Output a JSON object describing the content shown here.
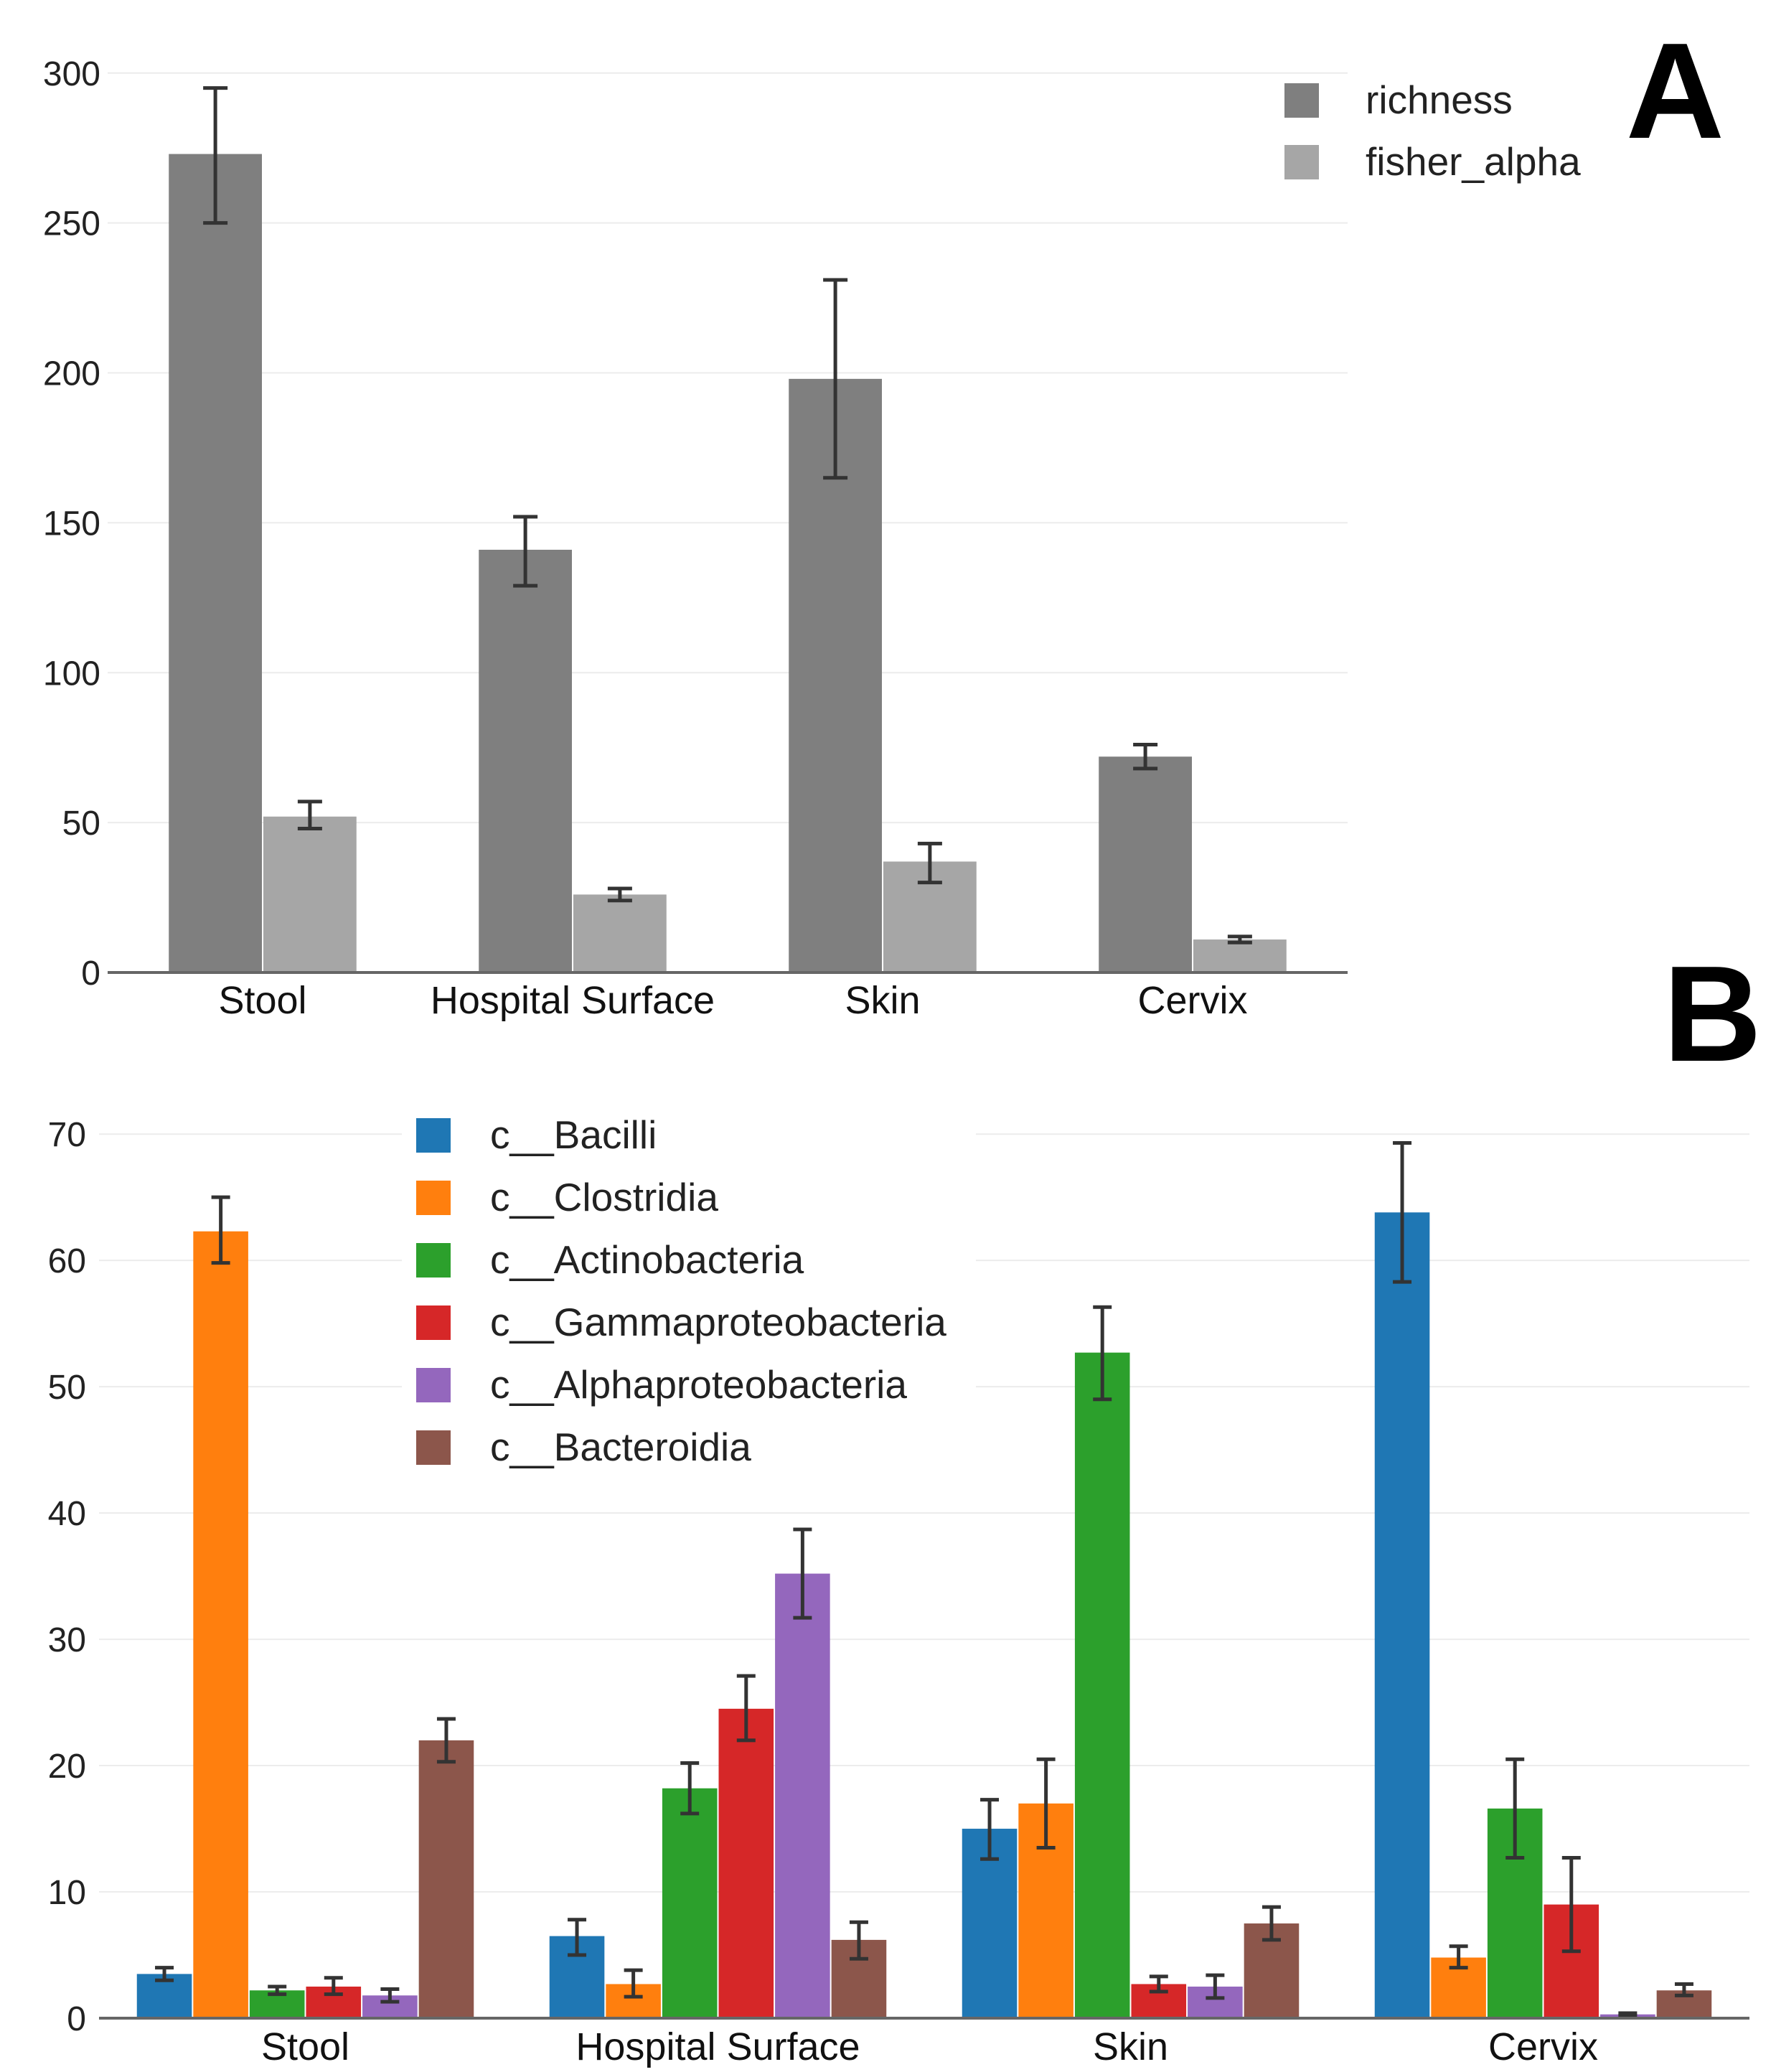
{
  "panels": {
    "a_label": "A",
    "b_label": "B"
  },
  "chart_data": [
    {
      "type": "bar",
      "panel": "A",
      "categories": [
        "Stool",
        "Hospital Surface",
        "Skin",
        "Cervix"
      ],
      "yticks": [
        "0",
        "50",
        "100",
        "150",
        "200",
        "250",
        "300"
      ],
      "ylim": [
        0,
        310
      ],
      "legend_position": "top-right",
      "series": [
        {
          "name": "richness",
          "color": "#7f7f7f",
          "values": [
            273,
            141,
            198,
            72
          ],
          "err_low": [
            250,
            129,
            165,
            68
          ],
          "err_high": [
            295,
            152,
            231,
            76
          ]
        },
        {
          "name": "fisher_alpha",
          "color": "#a6a6a6",
          "values": [
            52,
            26,
            37,
            11
          ],
          "err_low": [
            48,
            24,
            30,
            10
          ],
          "err_high": [
            57,
            28,
            43,
            12
          ]
        }
      ]
    },
    {
      "type": "bar",
      "panel": "B",
      "categories": [
        "Stool",
        "Hospital Surface",
        "Skin",
        "Cervix"
      ],
      "yticks": [
        "0",
        "10",
        "20",
        "30",
        "40",
        "50",
        "60",
        "70"
      ],
      "ylim": [
        0,
        72
      ],
      "legend_position": "top-left",
      "series": [
        {
          "name": "c__Bacilli",
          "color": "#1f77b4",
          "values": [
            3.5,
            6.5,
            15.0,
            63.8
          ],
          "err_low": [
            3.0,
            5.0,
            12.6,
            58.3
          ],
          "err_high": [
            4.0,
            7.8,
            17.3,
            69.3
          ]
        },
        {
          "name": "c__Clostridia",
          "color": "#ff7f0e",
          "values": [
            62.3,
            2.7,
            17.0,
            4.8
          ],
          "err_low": [
            59.8,
            1.7,
            13.5,
            4.0
          ],
          "err_high": [
            65.0,
            3.8,
            20.5,
            5.7
          ]
        },
        {
          "name": "c__Actinobacteria",
          "color": "#2ca02c",
          "values": [
            2.2,
            18.2,
            52.7,
            16.6
          ],
          "err_low": [
            1.9,
            16.2,
            49.0,
            12.7
          ],
          "err_high": [
            2.5,
            20.2,
            56.3,
            20.5
          ]
        },
        {
          "name": "c__Gammaproteobacteria",
          "color": "#d62728",
          "values": [
            2.5,
            24.5,
            2.7,
            9.0
          ],
          "err_low": [
            1.9,
            22.0,
            2.1,
            5.3
          ],
          "err_high": [
            3.2,
            27.1,
            3.3,
            12.7
          ]
        },
        {
          "name": "c__Alphaproteobacteria",
          "color": "#9467bd",
          "values": [
            1.8,
            35.2,
            2.5,
            0.3
          ],
          "err_low": [
            1.3,
            31.7,
            1.6,
            0.2
          ],
          "err_high": [
            2.3,
            38.7,
            3.4,
            0.4
          ]
        },
        {
          "name": "c__Bacteroidia",
          "color": "#8c564b",
          "values": [
            22.0,
            6.2,
            7.5,
            2.2
          ],
          "err_low": [
            20.3,
            4.7,
            6.2,
            1.8
          ],
          "err_high": [
            23.7,
            7.6,
            8.8,
            2.7
          ]
        }
      ]
    }
  ]
}
